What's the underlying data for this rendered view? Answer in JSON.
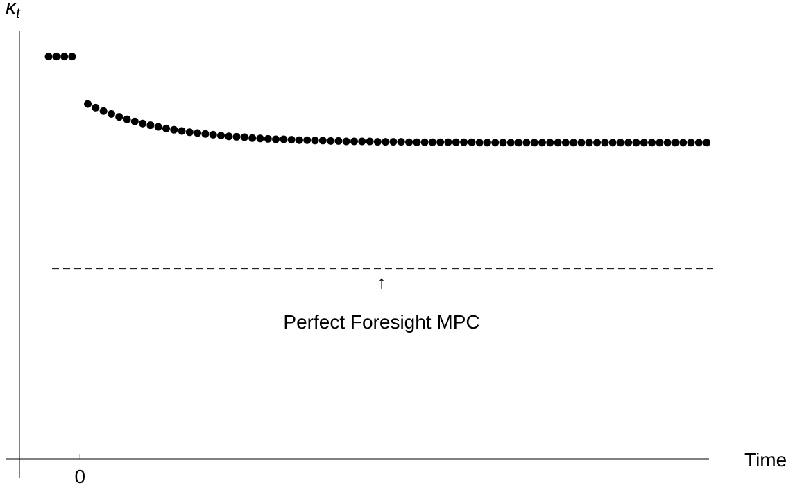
{
  "chart_data": {
    "type": "scatter",
    "y_label": "κ",
    "y_label_subscript": "t",
    "x_label": "Time",
    "annotation": "Perfect Foresight MPC",
    "reference_line": 0.457,
    "color": "#000000",
    "xlim": [
      -9.5,
      80.3
    ],
    "ylim": [
      -0.047,
      1.028
    ],
    "xticks": [
      0
    ],
    "x": [
      -4,
      -3,
      -2,
      -1,
      1,
      2,
      3,
      4,
      5,
      6,
      7,
      8,
      9,
      10,
      11,
      12,
      13,
      14,
      15,
      16,
      17,
      18,
      19,
      20,
      21,
      22,
      23,
      24,
      25,
      26,
      27,
      28,
      29,
      30,
      31,
      32,
      33,
      34,
      35,
      36,
      37,
      38,
      39,
      40,
      41,
      42,
      43,
      44,
      45,
      46,
      47,
      48,
      49,
      50,
      51,
      52,
      53,
      54,
      55,
      56,
      57,
      58,
      59,
      60,
      61,
      62,
      63,
      64,
      65,
      66,
      67,
      68,
      69,
      70,
      71,
      72,
      73,
      74,
      75,
      76,
      77,
      78,
      79,
      80
    ],
    "values": [
      0.967,
      0.967,
      0.967,
      0.967,
      0.853,
      0.844,
      0.836,
      0.829,
      0.822,
      0.816,
      0.811,
      0.806,
      0.802,
      0.798,
      0.794,
      0.791,
      0.788,
      0.785,
      0.783,
      0.781,
      0.779,
      0.777,
      0.775,
      0.774,
      0.773,
      0.771,
      0.77,
      0.769,
      0.768,
      0.768,
      0.767,
      0.766,
      0.766,
      0.765,
      0.765,
      0.764,
      0.764,
      0.763,
      0.763,
      0.763,
      0.763,
      0.762,
      0.762,
      0.762,
      0.762,
      0.761,
      0.761,
      0.761,
      0.761,
      0.761,
      0.761,
      0.761,
      0.761,
      0.761,
      0.76,
      0.76,
      0.76,
      0.76,
      0.76,
      0.76,
      0.76,
      0.76,
      0.76,
      0.76,
      0.76,
      0.76,
      0.76,
      0.76,
      0.76,
      0.76,
      0.76,
      0.76,
      0.76,
      0.76,
      0.76,
      0.76,
      0.76,
      0.76,
      0.76,
      0.76,
      0.76,
      0.76,
      0.76,
      0.76
    ]
  }
}
